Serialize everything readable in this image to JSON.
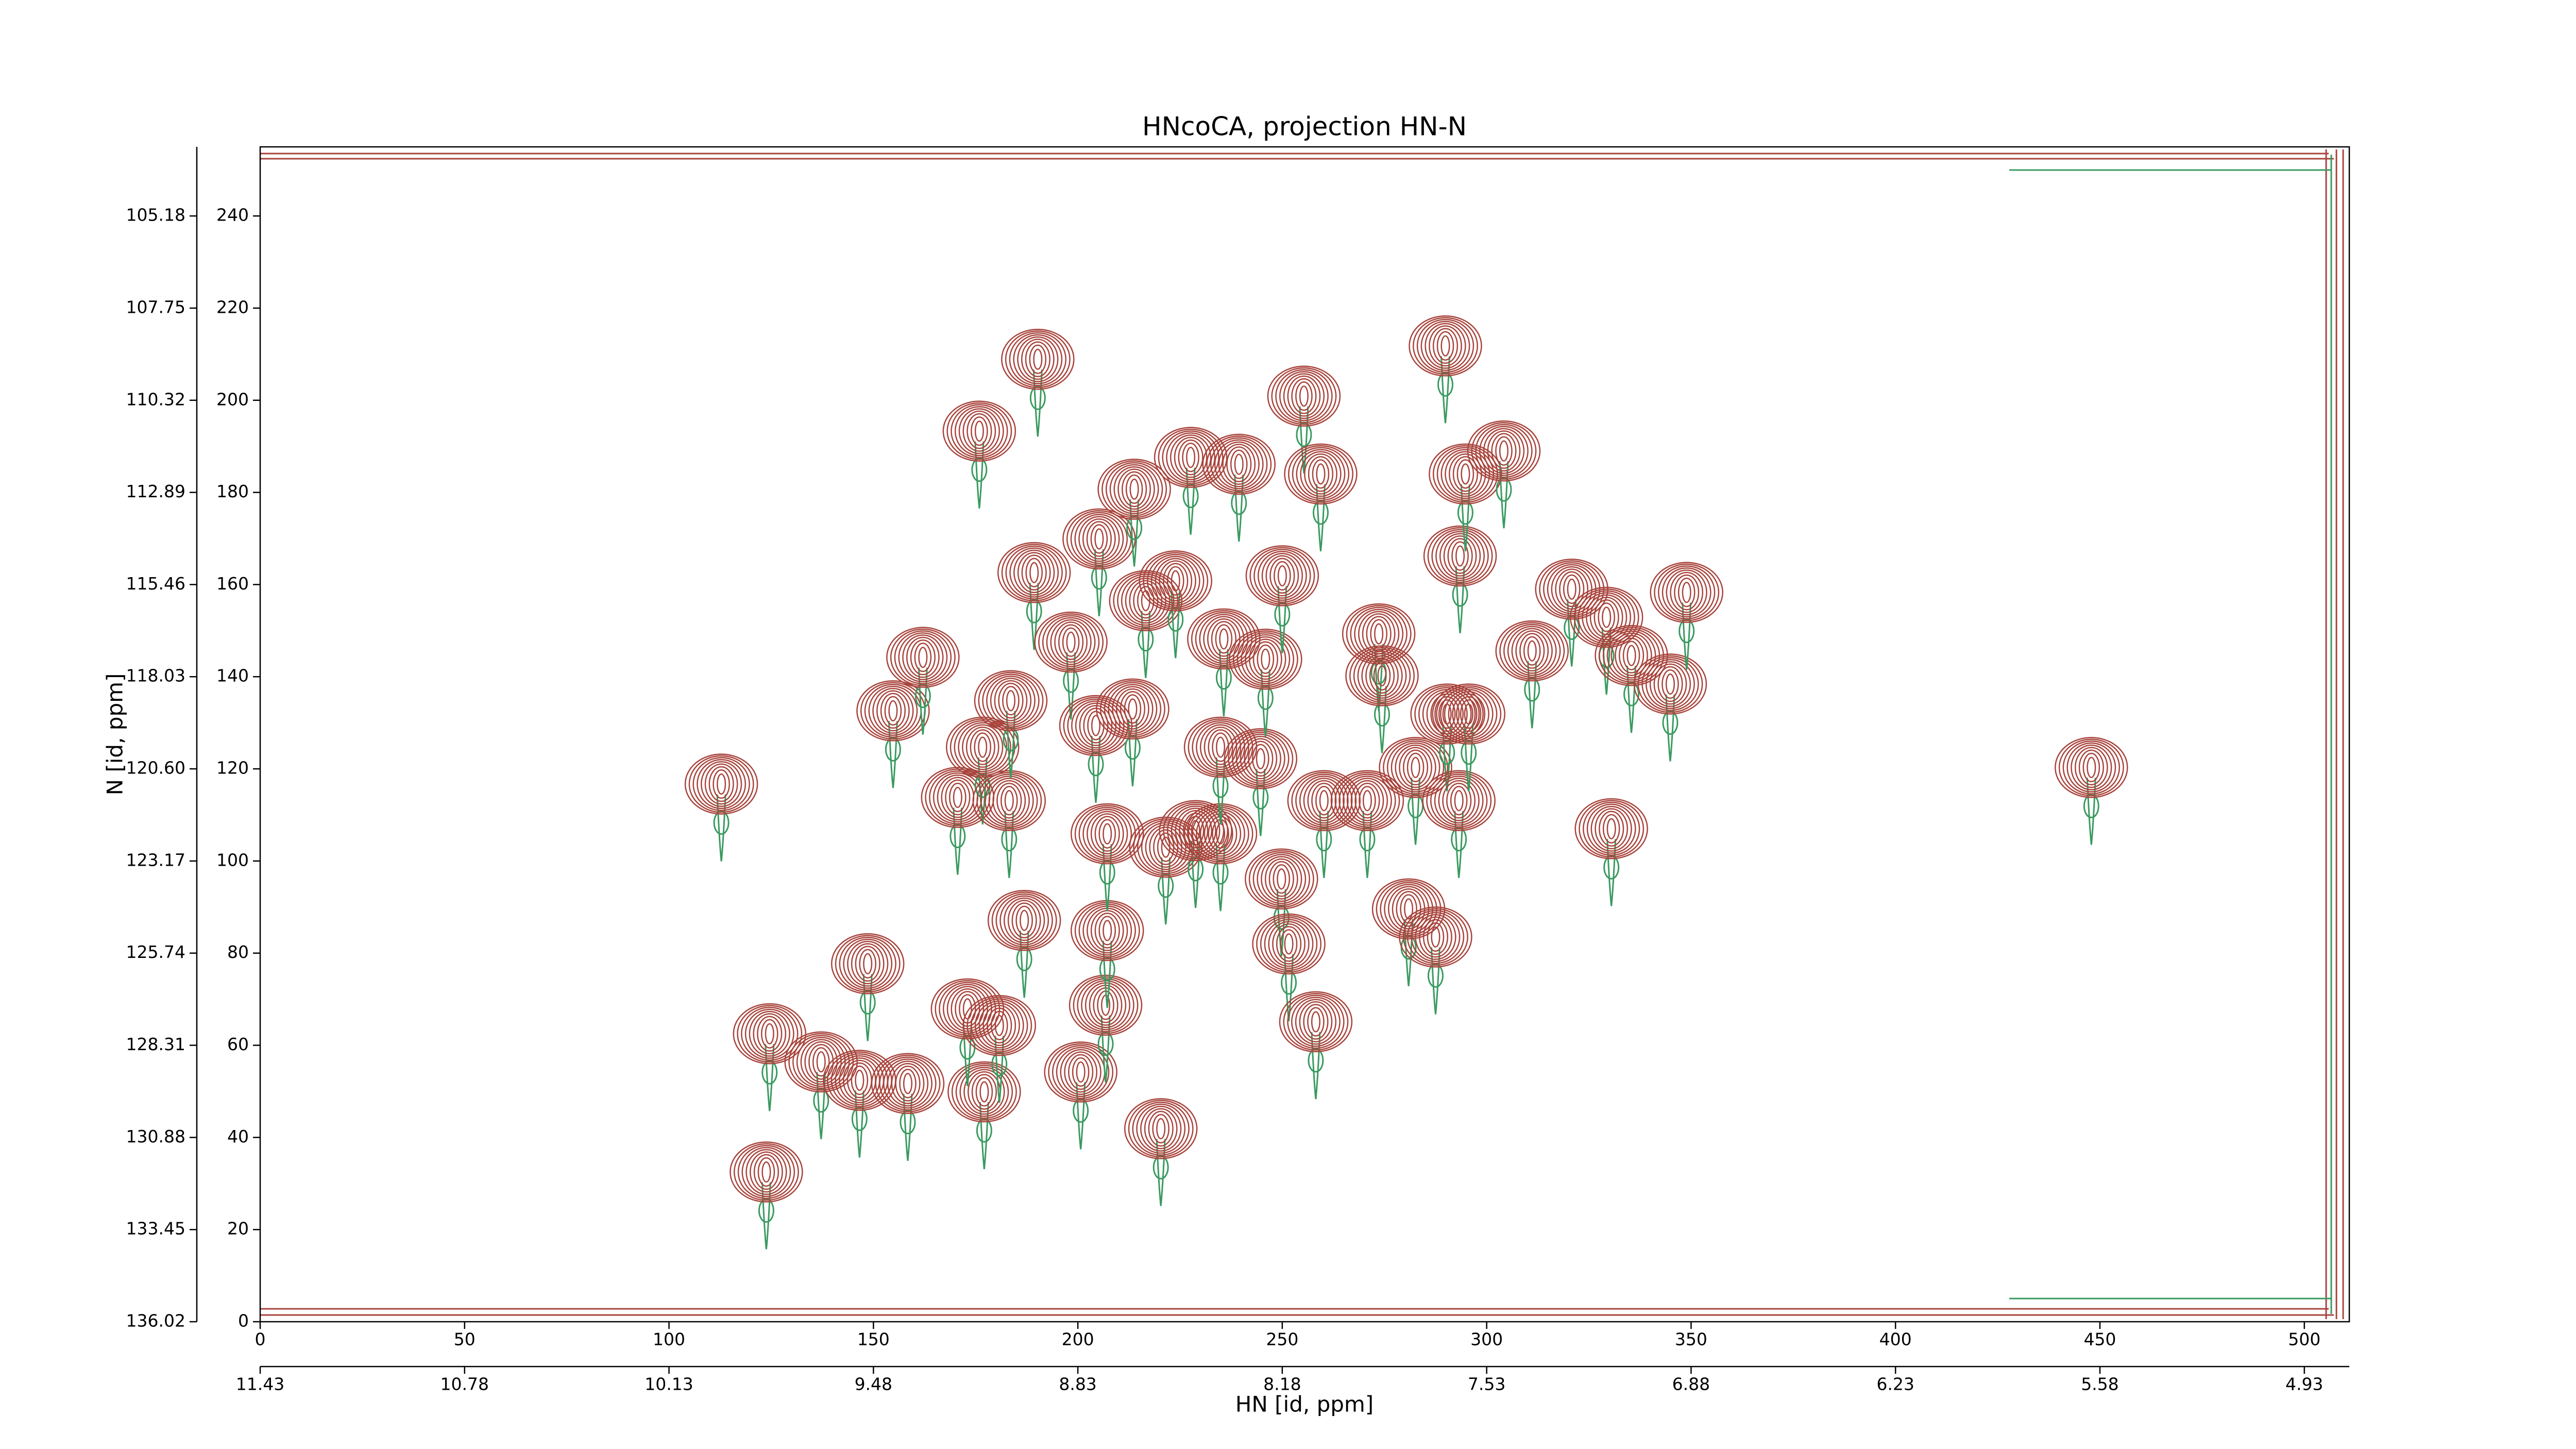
{
  "chart_data": {
    "type": "contour",
    "title": "HNcoCA, projection HN-N",
    "x_label": "HN [id, ppm]",
    "y_label": "N [id, ppm]",
    "xlim": [
      0,
      511
    ],
    "ylim": [
      0,
      255
    ],
    "xticks": [
      0,
      50,
      100,
      150,
      200,
      250,
      300,
      350,
      400,
      450,
      500
    ],
    "yticks": [
      0,
      20,
      40,
      60,
      80,
      100,
      120,
      140,
      160,
      180,
      200,
      220,
      240
    ],
    "x2ticks": [
      {
        "value": 0,
        "label": "11.43"
      },
      {
        "value": 50,
        "label": "10.78"
      },
      {
        "value": 100,
        "label": "10.13"
      },
      {
        "value": 150,
        "label": "9.48"
      },
      {
        "value": 200,
        "label": "8.83"
      },
      {
        "value": 250,
        "label": "8.18"
      },
      {
        "value": 300,
        "label": "7.53"
      },
      {
        "value": 350,
        "label": "6.88"
      },
      {
        "value": 400,
        "label": "6.23"
      },
      {
        "value": 450,
        "label": "5.58"
      },
      {
        "value": 500,
        "label": "4.93"
      }
    ],
    "y2ticks": [
      {
        "value": 0,
        "label": "136.02"
      },
      {
        "value": 20,
        "label": "133.45"
      },
      {
        "value": 40,
        "label": "130.88"
      },
      {
        "value": 60,
        "label": "128.31"
      },
      {
        "value": 80,
        "label": "125.74"
      },
      {
        "value": 100,
        "label": "123.17"
      },
      {
        "value": 120,
        "label": "120.60"
      },
      {
        "value": 140,
        "label": "118.03"
      },
      {
        "value": 160,
        "label": "115.46"
      },
      {
        "value": 180,
        "label": "112.89"
      },
      {
        "value": 200,
        "label": "110.32"
      },
      {
        "value": 220,
        "label": "107.75"
      },
      {
        "value": 240,
        "label": "105.18"
      }
    ],
    "color": "#a8443c",
    "negative_color": "#3a9a60",
    "peaks": {
      "x": [
        112.8,
        123.8,
        124.6,
        148.6,
        137.2,
        146.6,
        158.4,
        154.8,
        162.1,
        177.1,
        173.0,
        180.8,
        170.6,
        176.7,
        183.2,
        183.6,
        186.9,
        175.9,
        190.2,
        189.3,
        198.3,
        200.7,
        206.8,
        207.2,
        204.4,
        205.2,
        207.2,
        213.8,
        216.6,
        213.4,
        220.3,
        223.9,
        227.6,
        221.5,
        228.8,
        234.9,
        235.7,
        234.9,
        239.4,
        244.7,
        245.9,
        250.0,
        249.8,
        251.6,
        255.3,
        259.4,
        258.2,
        260.2,
        270.8,
        273.6,
        274.4,
        280.9,
        282.6,
        287.5,
        289.9,
        290.3,
        293.2,
        293.5,
        294.8,
        295.6,
        304.2,
        311.1,
        320.8,
        329.3,
        330.5,
        335.4,
        344.9,
        348.9,
        447.9
      ],
      "y": [
        116.7,
        32.5,
        62.5,
        77.7,
        56.4,
        52.4,
        51.7,
        132.6,
        144.2,
        49.9,
        67.9,
        64.3,
        113.8,
        124.7,
        113.1,
        134.8,
        87.1,
        193.3,
        208.9,
        162.6,
        147.5,
        54.2,
        68.7,
        84.9,
        129.4,
        169.9,
        105.9,
        180.7,
        156.5,
        133.0,
        41.9,
        160.8,
        187.6,
        103.0,
        106.6,
        105.9,
        148.2,
        124.7,
        186.1,
        122.2,
        143.8,
        161.9,
        96.1,
        82.0,
        200.9,
        184.0,
        65.1,
        113.1,
        113.1,
        149.3,
        140.2,
        89.6,
        120.3,
        83.5,
        211.8,
        131.9,
        113.1,
        166.2,
        184.0,
        131.9,
        189.0,
        145.6,
        159.0,
        152.9,
        107.0,
        144.6,
        138.4,
        158.3,
        120.3
      ]
    }
  }
}
